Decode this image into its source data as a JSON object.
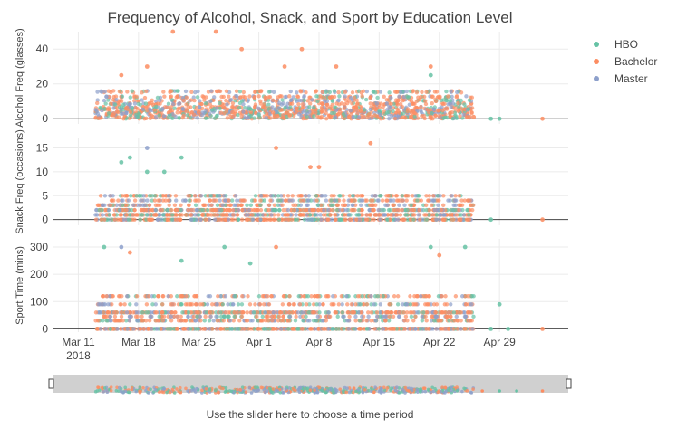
{
  "chart_data": {
    "type": "scatter",
    "title": "Frequency of Alcohol, Snack, and Sport by Education Level",
    "legend": {
      "placement": "top-right",
      "entries": [
        {
          "name": "HBO",
          "color": "#66c2a5"
        },
        {
          "name": "Bachelor",
          "color": "#fc8d62"
        },
        {
          "name": "Master",
          "color": "#8da0cb"
        }
      ]
    },
    "x_axis": {
      "type": "date",
      "range": [
        "2018-03-08",
        "2018-05-07"
      ],
      "tick_labels": [
        {
          "date": "2018-03-11",
          "label": "Mar 11",
          "sub": "2018"
        },
        {
          "date": "2018-03-18",
          "label": "Mar 18"
        },
        {
          "date": "2018-03-25",
          "label": "Mar 25"
        },
        {
          "date": "2018-04-01",
          "label": "Apr 1"
        },
        {
          "date": "2018-04-08",
          "label": "Apr 8"
        },
        {
          "date": "2018-04-15",
          "label": "Apr 15"
        },
        {
          "date": "2018-04-22",
          "label": "Apr 22"
        },
        {
          "date": "2018-04-29",
          "label": "Apr 29"
        }
      ],
      "rangeslider": true,
      "rangeslider_note": "Use the slider here to choose a time period"
    },
    "panels": [
      {
        "ylabel": "Alcohol Freq (glasses)",
        "ylim": [
          -3,
          50
        ],
        "yticks": [
          0,
          20,
          40
        ],
        "grid": true,
        "highlights": [
          {
            "date": "2018-03-22",
            "value": 50,
            "series": "Bachelor"
          },
          {
            "date": "2018-03-27",
            "value": 50,
            "series": "Bachelor"
          },
          {
            "date": "2018-03-30",
            "value": 40,
            "series": "Bachelor"
          },
          {
            "date": "2018-04-06",
            "value": 40,
            "series": "Bachelor"
          },
          {
            "date": "2018-03-19",
            "value": 30,
            "series": "Bachelor"
          },
          {
            "date": "2018-04-04",
            "value": 30,
            "series": "Bachelor"
          },
          {
            "date": "2018-04-21",
            "value": 30,
            "series": "Bachelor"
          },
          {
            "date": "2018-04-10",
            "value": 30,
            "series": "Bachelor"
          },
          {
            "date": "2018-03-16",
            "value": 25,
            "series": "Bachelor"
          },
          {
            "date": "2018-04-21",
            "value": 25,
            "series": "HBO"
          },
          {
            "date": "2018-04-26",
            "value": 1,
            "series": "Bachelor"
          },
          {
            "date": "2018-04-28",
            "value": 0,
            "series": "HBO"
          },
          {
            "date": "2018-04-29",
            "value": 0,
            "series": "HBO"
          },
          {
            "date": "2018-05-04",
            "value": 0,
            "series": "Bachelor"
          }
        ]
      },
      {
        "ylabel": "Snack Freq (occasions)",
        "ylim": [
          -1.2,
          17
        ],
        "yticks": [
          0,
          5,
          10,
          15
        ],
        "grid": true,
        "highlights": [
          {
            "date": "2018-04-14",
            "value": 16,
            "series": "Bachelor"
          },
          {
            "date": "2018-04-03",
            "value": 15,
            "series": "Bachelor"
          },
          {
            "date": "2018-03-19",
            "value": 15,
            "series": "Master"
          },
          {
            "date": "2018-03-17",
            "value": 13,
            "series": "HBO"
          },
          {
            "date": "2018-03-16",
            "value": 12,
            "series": "HBO"
          },
          {
            "date": "2018-03-23",
            "value": 13,
            "series": "HBO"
          },
          {
            "date": "2018-04-08",
            "value": 11,
            "series": "Bachelor"
          },
          {
            "date": "2018-04-07",
            "value": 11,
            "series": "Bachelor"
          },
          {
            "date": "2018-03-19",
            "value": 10,
            "series": "HBO"
          },
          {
            "date": "2018-03-21",
            "value": 10,
            "series": "HBO"
          },
          {
            "date": "2018-04-28",
            "value": 0,
            "series": "HBO"
          },
          {
            "date": "2018-05-04",
            "value": 0,
            "series": "Bachelor"
          }
        ]
      },
      {
        "ylabel": "Sport Time (mins)",
        "ylim": [
          -12,
          330
        ],
        "yticks": [
          0,
          100,
          200,
          300
        ],
        "grid": true,
        "highlights": [
          {
            "date": "2018-03-14",
            "value": 300,
            "series": "HBO"
          },
          {
            "date": "2018-03-16",
            "value": 300,
            "series": "Master"
          },
          {
            "date": "2018-03-17",
            "value": 280,
            "series": "Bachelor"
          },
          {
            "date": "2018-03-28",
            "value": 300,
            "series": "HBO"
          },
          {
            "date": "2018-04-03",
            "value": 300,
            "series": "Bachelor"
          },
          {
            "date": "2018-04-21",
            "value": 300,
            "series": "HBO"
          },
          {
            "date": "2018-04-25",
            "value": 300,
            "series": "HBO"
          },
          {
            "date": "2018-04-22",
            "value": 270,
            "series": "Bachelor"
          },
          {
            "date": "2018-03-23",
            "value": 250,
            "series": "HBO"
          },
          {
            "date": "2018-03-31",
            "value": 240,
            "series": "HBO"
          },
          {
            "date": "2018-04-29",
            "value": 90,
            "series": "HBO"
          },
          {
            "date": "2018-04-28",
            "value": 0,
            "series": "HBO"
          },
          {
            "date": "2018-04-30",
            "value": 0,
            "series": "HBO"
          },
          {
            "date": "2018-05-04",
            "value": 0,
            "series": "Bachelor"
          }
        ]
      }
    ]
  }
}
